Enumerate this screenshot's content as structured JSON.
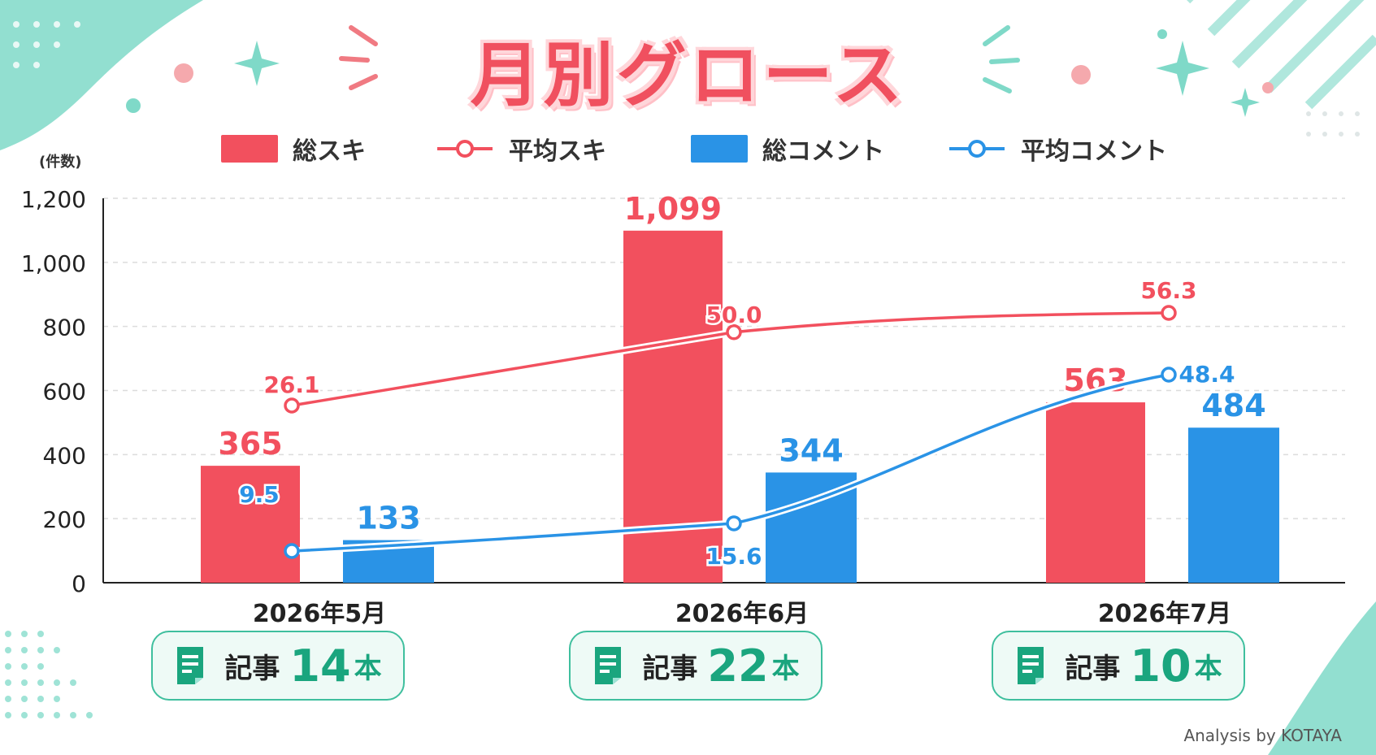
{
  "chart_data": {
    "type": "bar",
    "title": "月別グロース",
    "ylabel": "(件数)",
    "ylim": [
      0,
      1200
    ],
    "yticks": [
      "0",
      "200",
      "400",
      "600",
      "800",
      "1,000",
      "1,200"
    ],
    "categories": [
      "2026年5月",
      "2026年6月",
      "2026年7月"
    ],
    "series": [
      {
        "name": "総スキ",
        "kind": "bar",
        "values": [
          365,
          1099,
          563
        ],
        "labels": [
          "365",
          "1,099",
          "563"
        ],
        "color": "#f2505e"
      },
      {
        "name": "総コメント",
        "kind": "bar",
        "values": [
          133,
          344,
          484
        ],
        "labels": [
          "133",
          "344",
          "484"
        ],
        "color": "#2a93e6"
      },
      {
        "name": "平均スキ",
        "kind": "line",
        "values": [
          26.1,
          50.0,
          56.3
        ],
        "labels": [
          "26.1",
          "50.0",
          "56.3"
        ],
        "color": "#f2505e"
      },
      {
        "name": "平均コメント",
        "kind": "line",
        "values": [
          9.5,
          15.6,
          48.4
        ],
        "labels": [
          "9.5",
          "15.6",
          "48.4"
        ],
        "color": "#2a93e6"
      }
    ],
    "grid": true,
    "legend_position": "top"
  },
  "badges": [
    {
      "label": "記事",
      "count": "14",
      "unit": "本"
    },
    {
      "label": "記事",
      "count": "22",
      "unit": "本"
    },
    {
      "label": "記事",
      "count": "10",
      "unit": "本"
    }
  ],
  "credit": "Analysis by KOTAYA",
  "colors": {
    "red": "#f2505e",
    "blue": "#2a93e6",
    "teal": "#3fbf9e",
    "mint": "#7fd9c8"
  }
}
